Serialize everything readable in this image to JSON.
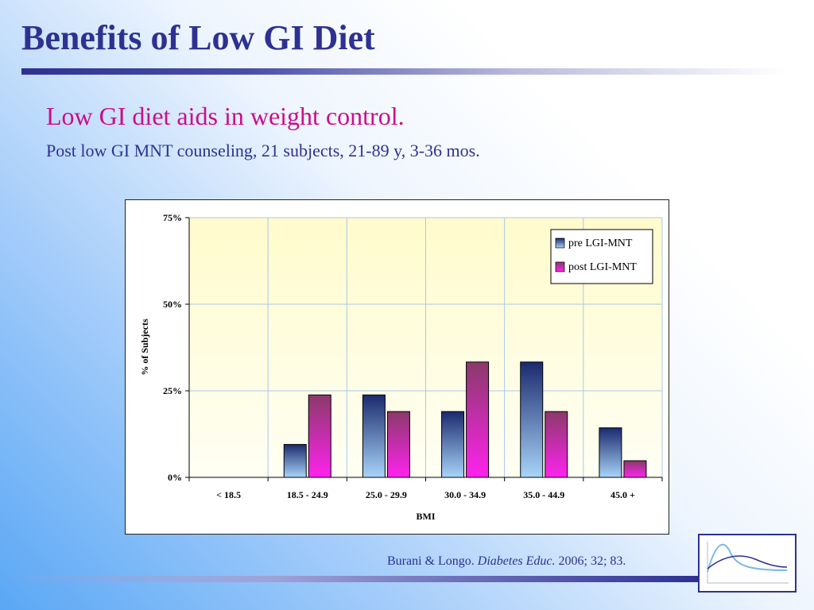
{
  "slide": {
    "title": "Benefits of Low GI Diet",
    "subtitle": "Low GI diet aids in weight control.",
    "subline": "Post low GI MNT counseling, 21 subjects, 21-89 y, 3-36 mos.",
    "citation_authors": "Burani & Longo. ",
    "citation_journal": "Diabetes Educ.",
    "citation_details": " 2006; 32; 83."
  },
  "colors": {
    "title": "#2e3192",
    "subtitle": "#cc0c8c",
    "plot_bg_top": "#fffbcc",
    "plot_bg_bottom": "#fffff4",
    "grid": "#a9c8e8",
    "pre_top": "#1b2a6e",
    "pre_bottom": "#a8d4f8",
    "post_top": "#8a3a6a",
    "post_bottom": "#ff22ee"
  },
  "chart_data": {
    "type": "bar",
    "categories": [
      "< 18.5",
      "18.5 - 24.9",
      "25.0 - 29.9",
      "30.0 - 34.9",
      "35.0 - 44.9",
      "45.0 +"
    ],
    "series": [
      {
        "name": "pre LGI-MNT",
        "values": [
          0,
          9.5,
          23.8,
          19.0,
          33.3,
          14.3
        ]
      },
      {
        "name": "post LGI-MNT",
        "values": [
          0,
          23.8,
          19.0,
          33.3,
          19.0,
          4.8
        ]
      }
    ],
    "xlabel": "BMI",
    "ylabel": "% of Subjects",
    "ylim": [
      0,
      75
    ],
    "yticks": [
      0,
      25,
      50,
      75
    ],
    "ytick_labels": [
      "0%",
      "25%",
      "50%",
      "75%"
    ],
    "grid": true,
    "legend_position": "top-right"
  }
}
